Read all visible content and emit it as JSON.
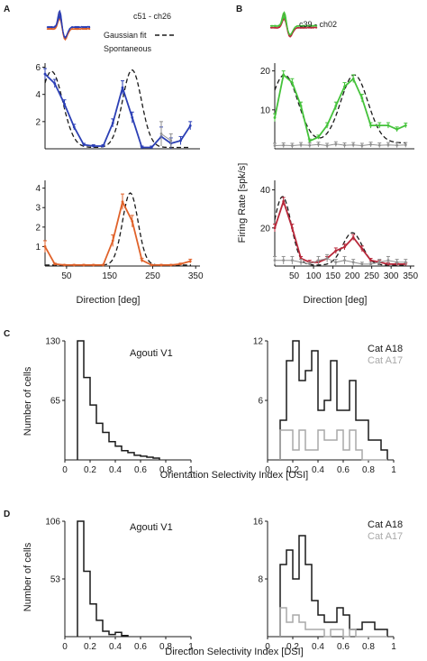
{
  "panels": {
    "A": {
      "letter": "A",
      "unit_label": "c51 - ch26"
    },
    "B": {
      "letter": "B",
      "unit_label": "c39 - ch02"
    },
    "C": {
      "letter": "C"
    },
    "D": {
      "letter": "D"
    }
  },
  "legend": {
    "gaussian": "Gaussian fit",
    "spontaneous": "Spontaneous"
  },
  "labels": {
    "firing_rate": "Firing Rate [spk/s]",
    "direction": "Direction [deg]",
    "number_of_cells": "Number of cells",
    "osi": "Orientation Selectivity Index [OSI]",
    "dsi": "Direction Selectivity Index [DSI]",
    "agouti": "Agouti V1",
    "cat_a18": "Cat A18",
    "cat_a17": "Cat A17"
  },
  "colors": {
    "blue": "#2b3fb5",
    "orange": "#e0622a",
    "green": "#44c23a",
    "red": "#b8283a",
    "gray": "#8f8f8f",
    "black": "#1a1a1a",
    "light_gray": "#a9a9a9"
  },
  "chart_data": [
    {
      "id": "A-top",
      "type": "line",
      "xlabel": "",
      "ylabel": "",
      "xlim": [
        0,
        360
      ],
      "ylim": [
        0,
        6.3
      ],
      "yticks": [
        2,
        4,
        6
      ],
      "xticks": [],
      "series": [
        {
          "color": "blue",
          "x": [
            0,
            22.5,
            45,
            67.5,
            90,
            112.5,
            135,
            157.5,
            180,
            202.5,
            225,
            247.5,
            270,
            292.5,
            315,
            337.5
          ],
          "y": [
            5.5,
            4.8,
            3.3,
            1.6,
            0.3,
            0.2,
            0.2,
            1.9,
            4.5,
            2.3,
            0.1,
            0.1,
            0.9,
            0.4,
            0.6,
            1.7
          ],
          "err": [
            0.4,
            0.3,
            0.3,
            0.2,
            0.1,
            0.1,
            0.1,
            0.3,
            0.5,
            0.4,
            0.1,
            0.1,
            0.7,
            0.4,
            0.3,
            0.3
          ]
        },
        {
          "color": "gray",
          "x": [
            270,
            292.5
          ],
          "y": [
            1.1,
            0.6
          ],
          "err": [
            0.9,
            0.5
          ]
        }
      ],
      "fit": {
        "base": 0.1,
        "peaks": [
          [
            5.6,
            15,
            26
          ],
          [
            5.7,
            202,
            22
          ]
        ]
      }
    },
    {
      "id": "A-bottom",
      "type": "line",
      "xlabel": "Direction [deg]",
      "ylabel": "",
      "xlim": [
        0,
        360
      ],
      "ylim": [
        0,
        4.4
      ],
      "yticks": [
        1,
        2,
        3,
        4
      ],
      "xticks": [
        50,
        150,
        250,
        350
      ],
      "series": [
        {
          "color": "orange",
          "x": [
            0,
            22.5,
            45,
            67.5,
            90,
            112.5,
            135,
            157.5,
            180,
            202.5,
            225,
            247.5,
            270,
            292.5,
            315,
            337.5
          ],
          "y": [
            1.0,
            0.1,
            0.05,
            0.05,
            0.05,
            0.05,
            0.05,
            1.3,
            3.3,
            2.3,
            0.3,
            0.05,
            0.05,
            0.05,
            0.1,
            0.25
          ],
          "err": [
            0.3,
            0.05,
            0.03,
            0.03,
            0.03,
            0.03,
            0.03,
            0.3,
            0.4,
            0.3,
            0.1,
            0.03,
            0.03,
            0.03,
            0.05,
            0.1
          ]
        }
      ],
      "fit": {
        "base": 0.05,
        "peaks": [
          [
            3.7,
            198,
            18
          ]
        ]
      }
    },
    {
      "id": "B-top",
      "type": "line",
      "xlabel": "",
      "ylabel": "",
      "xlim": [
        0,
        360
      ],
      "ylim": [
        0,
        22
      ],
      "yticks": [
        10,
        20
      ],
      "xticks": [],
      "series": [
        {
          "color": "green",
          "x": [
            0,
            22.5,
            45,
            67.5,
            90,
            112.5,
            135,
            157.5,
            180,
            202.5,
            225,
            247.5,
            270,
            292.5,
            315,
            337.5
          ],
          "y": [
            8,
            19,
            17,
            11,
            2,
            3,
            6,
            11,
            16,
            18,
            13,
            6,
            6,
            6,
            5,
            6
          ],
          "err": [
            1,
            1,
            1,
            1,
            0.5,
            0.5,
            0.7,
            1,
            1,
            1,
            1,
            0.7,
            0.7,
            0.7,
            0.6,
            0.6
          ]
        },
        {
          "color": "gray",
          "x": [
            0,
            22.5,
            45,
            67.5,
            90,
            112.5,
            135,
            157.5,
            180,
            202.5,
            225,
            247.5,
            270,
            292.5,
            315,
            337.5
          ],
          "y": [
            0.8,
            0.9,
            0.8,
            1.0,
            0.9,
            1.1,
            0.8,
            1.2,
            0.9,
            1.0,
            0.8,
            1.1,
            0.9,
            1.0,
            0.9,
            1.0
          ],
          "err": [
            0.6,
            0.6,
            0.6,
            0.6,
            0.6,
            0.6,
            0.6,
            0.6,
            0.6,
            0.6,
            0.6,
            0.6,
            0.6,
            0.6,
            0.6,
            0.6
          ]
        }
      ],
      "fit": {
        "base": 1.5,
        "peaks": [
          [
            17.5,
            25,
            35
          ],
          [
            17.5,
            205,
            35
          ]
        ]
      }
    },
    {
      "id": "B-bottom",
      "type": "line",
      "xlabel": "Direction [deg]",
      "ylabel": "",
      "xlim": [
        0,
        360
      ],
      "ylim": [
        0,
        45
      ],
      "yticks": [
        20,
        40
      ],
      "xticks": [
        50,
        100,
        150,
        200,
        250,
        300,
        350
      ],
      "series": [
        {
          "color": "red",
          "x": [
            0,
            22.5,
            45,
            67.5,
            90,
            112.5,
            135,
            157.5,
            180,
            202.5,
            225,
            247.5,
            270,
            292.5,
            315,
            337.5
          ],
          "y": [
            20,
            34,
            20,
            4,
            2,
            2,
            4,
            8,
            10,
            15,
            9,
            3,
            2,
            1,
            1,
            1
          ],
          "err": [
            2,
            2,
            2,
            1,
            1,
            1,
            1,
            1.5,
            1.5,
            1.5,
            1.5,
            1,
            1,
            0.8,
            0.8,
            0.8
          ]
        },
        {
          "color": "gray",
          "x": [
            0,
            22.5,
            45,
            67.5,
            90,
            112.5,
            135,
            157.5,
            180,
            202.5,
            225,
            247.5,
            270,
            292.5,
            315,
            337.5
          ],
          "y": [
            3,
            3,
            3,
            2,
            1,
            3,
            4,
            2,
            3,
            2,
            1,
            1,
            2,
            3,
            2,
            2
          ],
          "err": [
            2,
            2,
            2,
            1.5,
            1,
            2,
            2,
            1.5,
            2,
            1.5,
            1,
            1,
            1.5,
            2,
            1.5,
            1.5
          ]
        }
      ],
      "fit": {
        "base": 0.5,
        "peaks": [
          [
            36,
            20,
            22
          ],
          [
            17,
            200,
            25
          ]
        ]
      }
    },
    {
      "id": "C-left",
      "type": "histogram",
      "xlabel": "",
      "ylabel": "Number of cells",
      "xlim": [
        0,
        1
      ],
      "ylim": [
        0,
        130
      ],
      "yticks": [
        65,
        130
      ],
      "xticks": [
        0,
        0.2,
        0.4,
        0.6,
        0.8,
        1
      ],
      "bins": [
        0.1,
        0.15,
        0.2,
        0.25,
        0.3,
        0.35,
        0.4,
        0.45,
        0.5,
        0.55,
        0.6,
        0.65,
        0.7,
        0.75
      ],
      "series": [
        {
          "color": "black",
          "counts": [
            130,
            90,
            60,
            40,
            30,
            20,
            15,
            10,
            8,
            5,
            4,
            3,
            2
          ]
        }
      ]
    },
    {
      "id": "C-right",
      "type": "histogram",
      "xlabel": "",
      "ylabel": "",
      "xlim": [
        0,
        1
      ],
      "ylim": [
        0,
        12
      ],
      "yticks": [
        6,
        12
      ],
      "xticks": [
        0,
        0.2,
        0.4,
        0.6,
        0.8,
        1
      ],
      "bins": [
        0.1,
        0.15,
        0.2,
        0.25,
        0.3,
        0.35,
        0.4,
        0.45,
        0.5,
        0.55,
        0.6,
        0.65,
        0.7,
        0.75,
        0.8,
        0.85,
        0.9,
        0.95
      ],
      "series": [
        {
          "color": "black",
          "counts": [
            4,
            10,
            12,
            8,
            9,
            11,
            5,
            6,
            10,
            5,
            5,
            8,
            4,
            4,
            2,
            2,
            1
          ]
        },
        {
          "color": "light_gray",
          "counts": [
            3,
            3,
            1,
            3,
            1,
            1,
            3,
            2,
            2,
            3,
            1,
            3,
            1,
            0,
            0,
            0,
            0
          ]
        }
      ]
    },
    {
      "id": "D-left",
      "type": "histogram",
      "xlabel": "",
      "ylabel": "Number of cells",
      "xlim": [
        0,
        1
      ],
      "ylim": [
        0,
        106
      ],
      "yticks": [
        53,
        106
      ],
      "xticks": [
        0,
        0.2,
        0.4,
        0.6,
        0.8,
        1
      ],
      "bins": [
        0.1,
        0.15,
        0.2,
        0.25,
        0.3,
        0.35,
        0.4,
        0.45,
        0.5
      ],
      "series": [
        {
          "color": "black",
          "counts": [
            106,
            60,
            30,
            15,
            5,
            2,
            4,
            1
          ]
        }
      ]
    },
    {
      "id": "D-right",
      "type": "histogram",
      "xlabel": "",
      "ylabel": "",
      "xlim": [
        0,
        1
      ],
      "ylim": [
        0,
        16
      ],
      "yticks": [
        8,
        16
      ],
      "xticks": [
        0,
        0.2,
        0.4,
        0.6,
        0.8,
        1
      ],
      "bins": [
        0.1,
        0.15,
        0.2,
        0.25,
        0.3,
        0.35,
        0.4,
        0.45,
        0.5,
        0.55,
        0.6,
        0.65,
        0.7,
        0.75,
        0.8,
        0.85,
        0.9,
        0.95
      ],
      "series": [
        {
          "color": "black",
          "counts": [
            10,
            12,
            8,
            14,
            10,
            5,
            3,
            2,
            2,
            4,
            3,
            1,
            1,
            2,
            2,
            1,
            1
          ]
        },
        {
          "color": "light_gray",
          "counts": [
            4,
            2,
            3,
            2,
            1,
            1,
            1,
            0,
            1,
            1,
            0,
            1,
            0,
            0,
            0,
            0,
            0
          ]
        }
      ]
    }
  ]
}
